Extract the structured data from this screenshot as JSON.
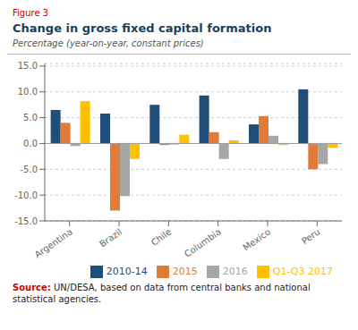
{
  "chart_data": {
    "type": "bar",
    "figure_label": "Figure 3",
    "title": "Change in gross fixed capital formation",
    "subtitle": "Percentage (year-on-year, constant prices)",
    "categories": [
      "Argentina",
      "Brazil",
      "Chile",
      "Columbia",
      "Mexico",
      "Peru"
    ],
    "series": [
      {
        "name": "2010-14",
        "color": "#1f4e79",
        "values": [
          6.5,
          5.8,
          7.5,
          9.3,
          3.7,
          10.5
        ]
      },
      {
        "name": "2015",
        "color": "#e07b39",
        "values": [
          4.0,
          -13.0,
          -0.3,
          2.2,
          5.3,
          -5.0
        ]
      },
      {
        "name": "2016",
        "color": "#a6a6a6",
        "values": [
          -0.5,
          -10.2,
          -0.2,
          -3.0,
          1.5,
          -4.0
        ]
      },
      {
        "name": "Q1-Q3 2017",
        "color": "#ffc000",
        "values": [
          8.2,
          -3.0,
          1.7,
          0.6,
          -0.3,
          -0.8
        ]
      }
    ],
    "ylim": [
      -15.0,
      15.5
    ],
    "yticks": [
      {
        "value": -15.0,
        "label": "-15.0"
      },
      {
        "value": -10.0,
        "label": "-10.0"
      },
      {
        "value": -5.0,
        "label": "-5.0"
      },
      {
        "value": 0.0,
        "label": "0.0"
      },
      {
        "value": 5.0,
        "label": "5.0"
      },
      {
        "value": 10.0,
        "label": "10.0"
      },
      {
        "value": 15.0,
        "label": "15.0"
      }
    ],
    "grid": true,
    "legend": "lower right",
    "source_label": "Source:",
    "source": "UN/DESA, based on data from central banks and national\nstatistical agencies."
  }
}
